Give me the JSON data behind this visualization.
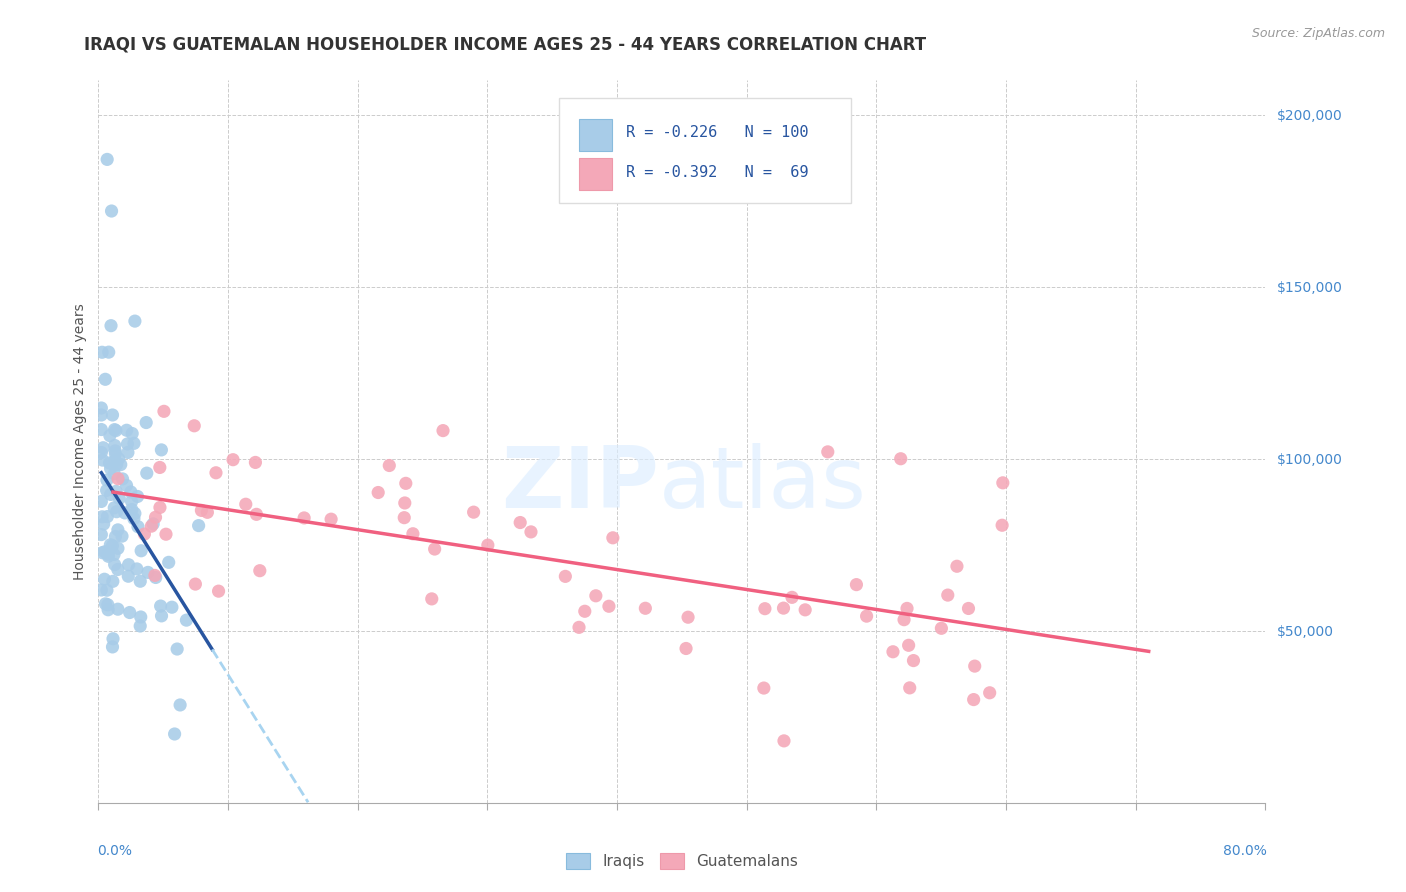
{
  "title": "IRAQI VS GUATEMALAN HOUSEHOLDER INCOME AGES 25 - 44 YEARS CORRELATION CHART",
  "source": "Source: ZipAtlas.com",
  "ylabel": "Householder Income Ages 25 - 44 years",
  "xlim": [
    0.0,
    0.8
  ],
  "ylim": [
    0,
    210000
  ],
  "background_color": "#ffffff",
  "iraqis_color": "#a8cce8",
  "guatemalans_color": "#f4a8b8",
  "iraqis_line_color": "#2855a0",
  "guatemalans_line_color": "#f06080",
  "iraqis_dashed_color": "#a8d4f0",
  "tick_color": "#4488cc",
  "title_fontsize": 12,
  "axis_label_fontsize": 10,
  "tick_fontsize": 10
}
